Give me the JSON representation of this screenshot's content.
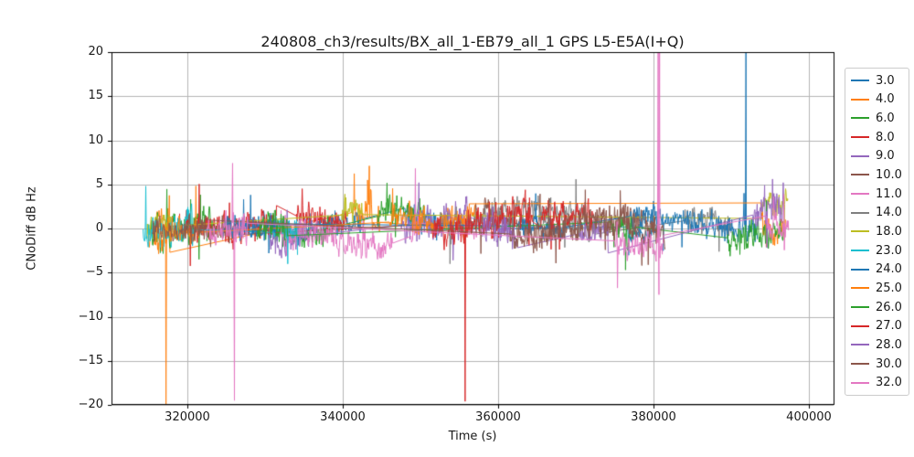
{
  "chart_data": {
    "type": "line",
    "title": "240808_ch3/results/BX_all_1-EB79_all_1 GPS L5-E5A(I+Q)",
    "xlabel": "Time (s)",
    "ylabel": "CNoDiff dB Hz",
    "xlim": [
      310235,
      403176
    ],
    "ylim": [
      -20,
      20
    ],
    "xticks": [
      320000,
      340000,
      360000,
      380000,
      400000
    ],
    "yticks": [
      -20,
      -15,
      -10,
      -5,
      0,
      5,
      10,
      15,
      20
    ],
    "xtick_labels": [
      "320000",
      "340000",
      "360000",
      "380000",
      "400000"
    ],
    "ytick_labels": [
      "−20",
      "−15",
      "−10",
      "−5",
      "0",
      "5",
      "10",
      "15",
      "20"
    ],
    "grid": true,
    "grid_color": "#b5b5b5",
    "axis_color": "#000000",
    "legend_position": "outside-right",
    "series": [
      {
        "name": "3.0",
        "color": "#1f77b4",
        "segments": [
          [
            327000,
            342500,
            0.4,
            1.2
          ],
          [
            348000,
            353000,
            0.6,
            1.3
          ],
          [
            376500,
            380400,
            0.1,
            1.0
          ]
        ],
        "spikes": []
      },
      {
        "name": "4.0",
        "color": "#ff7f0e",
        "segments": [
          [
            314800,
            317750,
            -0.8,
            1.4
          ],
          [
            341300,
            344800,
            1.0,
            1.4
          ],
          [
            352500,
            358000,
            0.4,
            1.1
          ]
        ],
        "spikes": [
          [
            317250,
            -21
          ],
          [
            317745,
            -2.7
          ],
          [
            343200,
            5.5
          ],
          [
            343420,
            7.1
          ],
          [
            343650,
            4.3
          ]
        ]
      },
      {
        "name": "6.0",
        "color": "#2ca02c",
        "segments": [
          [
            315200,
            323500,
            -0.2,
            1.5
          ],
          [
            330500,
            338500,
            0.3,
            1.2
          ],
          [
            344500,
            350500,
            1.3,
            1.4
          ]
        ],
        "spikes": [
          [
            321500,
            -3.5
          ]
        ]
      },
      {
        "name": "8.0",
        "color": "#d62728",
        "segments": [
          [
            319000,
            331500,
            0.2,
            1.4
          ],
          [
            334000,
            340500,
            0.8,
            1.3
          ]
        ],
        "spikes": []
      },
      {
        "name": "9.0",
        "color": "#9467bd",
        "segments": [
          [
            330500,
            336500,
            -1.2,
            1.3
          ],
          [
            347500,
            356500,
            0.1,
            1.6
          ],
          [
            358500,
            362000,
            0.0,
            1.2
          ]
        ],
        "spikes": [
          [
            349800,
            5.2
          ],
          [
            354200,
            -3.6
          ]
        ]
      },
      {
        "name": "10.0",
        "color": "#8c564b",
        "segments": [
          [
            321500,
            326500,
            0.6,
            1.0
          ],
          [
            357000,
            380200,
            0.8,
            1.3
          ]
        ],
        "spikes": []
      },
      {
        "name": "11.0",
        "color": "#e377c2",
        "segments": [
          [
            332000,
            346500,
            -0.9,
            1.3
          ],
          [
            348800,
            349900,
            0.5,
            1.2
          ],
          [
            354500,
            358500,
            -0.5,
            1.0
          ]
        ],
        "spikes": [
          [
            349350,
            6.8
          ]
        ]
      },
      {
        "name": "14.0",
        "color": "#7f7f7f",
        "segments": [
          [
            352500,
            372500,
            0.7,
            1.4
          ],
          [
            384000,
            390000,
            0.6,
            1.1
          ]
        ],
        "spikes": [
          [
            353800,
            -4.0
          ]
        ]
      },
      {
        "name": "18.0",
        "color": "#bcbd22",
        "segments": [
          [
            314800,
            318000,
            0.4,
            1.2
          ],
          [
            339800,
            342600,
            1.1,
            1.3
          ],
          [
            394000,
            397300,
            2.6,
            1.2
          ]
        ],
        "spikes": []
      },
      {
        "name": "23.0",
        "color": "#17becf",
        "segments": [
          [
            314300,
            320800,
            0.7,
            1.5
          ],
          [
            331000,
            334200,
            0.3,
            1.1
          ]
        ],
        "spikes": [
          [
            314650,
            4.8
          ]
        ]
      },
      {
        "name": "24.0",
        "color": "#1f77b4",
        "segments": [
          [
            324500,
            331500,
            0.3,
            1.2
          ],
          [
            362500,
            368500,
            0.2,
            1.0
          ],
          [
            377000,
            393400,
            0.3,
            1.2
          ]
        ],
        "spikes": [
          [
            391650,
            4.0
          ],
          [
            391900,
            20.2
          ]
        ]
      },
      {
        "name": "25.0",
        "color": "#ff7f0e",
        "segments": [
          [
            316000,
            321500,
            -0.2,
            1.3
          ],
          [
            346000,
            351800,
            0.8,
            1.2
          ],
          [
            353000,
            356300,
            1.6,
            1.0
          ],
          [
            393800,
            397000,
            0.2,
            1.5
          ]
        ],
        "spikes": [
          [
            356290,
            2.8
          ],
          [
            393810,
            2.9
          ]
        ]
      },
      {
        "name": "26.0",
        "color": "#2ca02c",
        "segments": [
          [
            329000,
            333000,
            0.4,
            1.2
          ],
          [
            374500,
            377600,
            -1.2,
            1.6
          ],
          [
            389500,
            396800,
            -0.3,
            1.3
          ]
        ],
        "spikes": [
          [
            376400,
            -4.7
          ]
        ]
      },
      {
        "name": "27.0",
        "color": "#d62728",
        "segments": [
          [
            351500,
            364500,
            0.8,
            1.5
          ],
          [
            365500,
            372300,
            0.8,
            1.3
          ]
        ],
        "spikes": [
          [
            355750,
            -19.6
          ]
        ]
      },
      {
        "name": "28.0",
        "color": "#9467bd",
        "segments": [
          [
            358000,
            362500,
            -0.9,
            1.4
          ],
          [
            370500,
            374200,
            0.0,
            1.1
          ],
          [
            392800,
            396900,
            1.4,
            1.6
          ]
        ],
        "spikes": [
          [
            394300,
            4.9
          ]
        ]
      },
      {
        "name": "30.0",
        "color": "#8c564b",
        "segments": [
          [
            315500,
            322500,
            0.4,
            1.1
          ],
          [
            361500,
            381500,
            0.0,
            1.3
          ]
        ],
        "spikes": [
          [
            378500,
            -4.2
          ]
        ]
      },
      {
        "name": "32.0",
        "color": "#e377c2",
        "segments": [
          [
            322500,
            327800,
            -0.7,
            1.5
          ],
          [
            375000,
            381300,
            -1.6,
            1.4
          ],
          [
            394500,
            397400,
            0.1,
            1.2
          ]
        ],
        "spikes": [
          [
            325820,
            7.4
          ],
          [
            326060,
            -19.5
          ],
          [
            380600,
            21
          ],
          [
            380700,
            -7.5
          ],
          [
            380780,
            21
          ],
          [
            380900,
            -2
          ]
        ]
      }
    ]
  }
}
